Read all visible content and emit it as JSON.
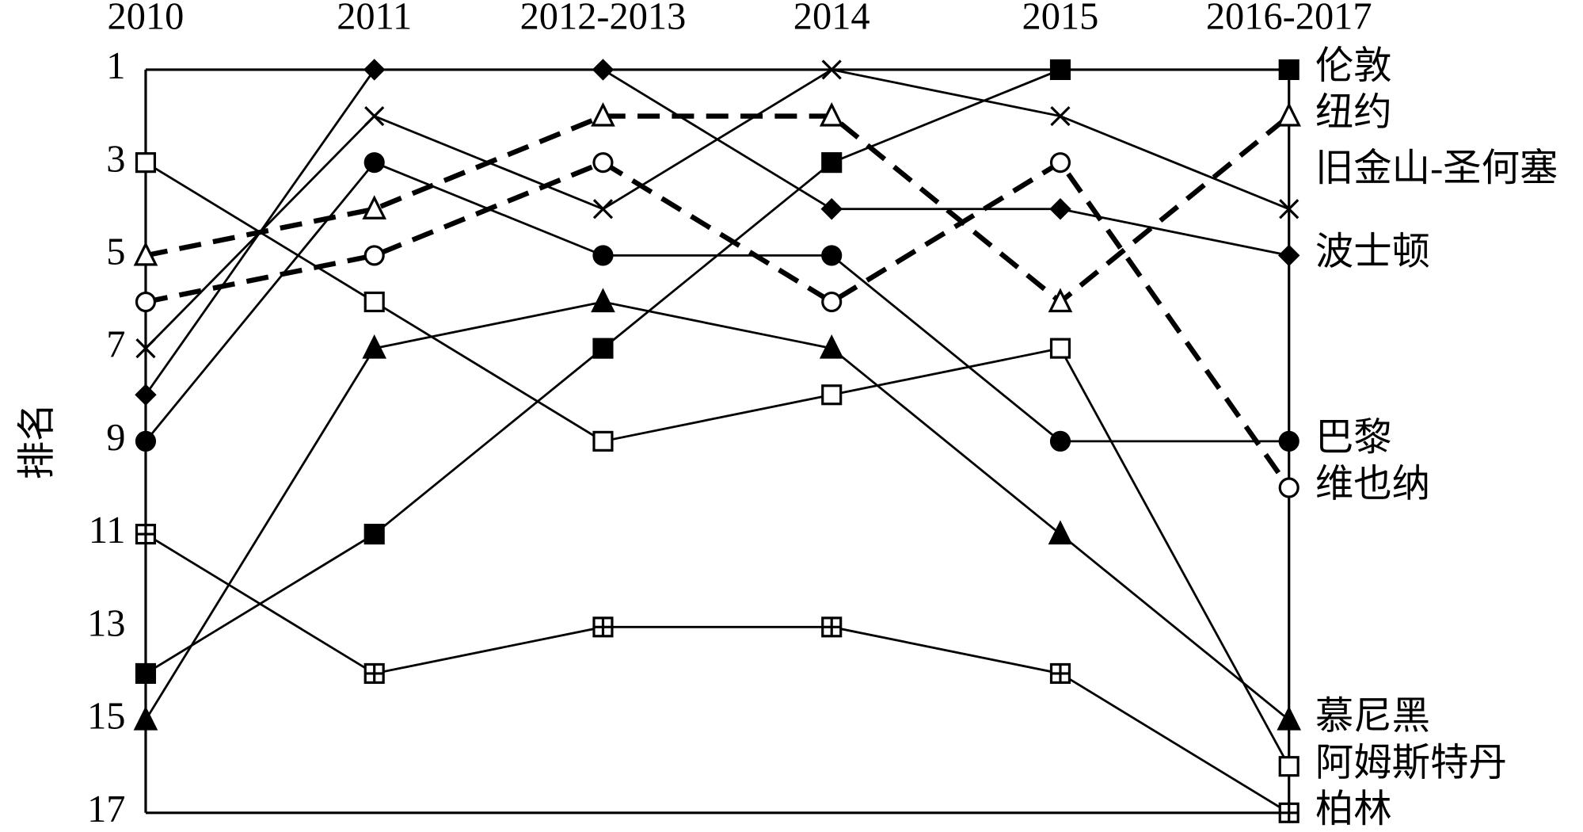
{
  "chart_data": {
    "type": "line",
    "categories": [
      "2010",
      "2011",
      "2012-2013",
      "2014",
      "2015",
      "2016-2017"
    ],
    "y_label": "排名",
    "ylim": [
      1,
      17
    ],
    "y_inverted": true,
    "yticks": [
      1,
      3,
      5,
      7,
      9,
      11,
      13,
      15,
      17
    ],
    "series": [
      {
        "name": "伦敦",
        "color": "#000000",
        "marker": "square-filled",
        "dashed": false,
        "values": [
          14,
          11,
          7,
          3,
          1,
          1
        ]
      },
      {
        "name": "纽约",
        "color": "#000000",
        "marker": "triangle-open",
        "dashed": true,
        "values": [
          5,
          4,
          2,
          2,
          6,
          2
        ]
      },
      {
        "name": "旧金山-圣何塞",
        "color": "#000000",
        "marker": "x",
        "dashed": false,
        "values": [
          7,
          2,
          4,
          1,
          2,
          4
        ]
      },
      {
        "name": "波士顿",
        "color": "#000000",
        "marker": "diamond-filled",
        "dashed": false,
        "values": [
          8,
          1,
          1,
          4,
          4,
          5
        ]
      },
      {
        "name": "巴黎",
        "color": "#000000",
        "marker": "circle-filled",
        "dashed": false,
        "values": [
          9,
          3,
          5,
          5,
          9,
          9
        ]
      },
      {
        "name": "维也纳",
        "color": "#000000",
        "marker": "circle-open",
        "dashed": true,
        "values": [
          6,
          5,
          3,
          6,
          3,
          10
        ]
      },
      {
        "name": "慕尼黑",
        "color": "#000000",
        "marker": "triangle-filled",
        "dashed": false,
        "values": [
          15,
          7,
          6,
          7,
          11,
          15
        ]
      },
      {
        "name": "阿姆斯特丹",
        "color": "#000000",
        "marker": "square-open",
        "dashed": false,
        "values": [
          3,
          6,
          9,
          8,
          7,
          16
        ]
      },
      {
        "name": "柏林",
        "color": "#000000",
        "marker": "square-plus",
        "dashed": false,
        "values": [
          11,
          14,
          13,
          13,
          14,
          17
        ]
      }
    ]
  }
}
